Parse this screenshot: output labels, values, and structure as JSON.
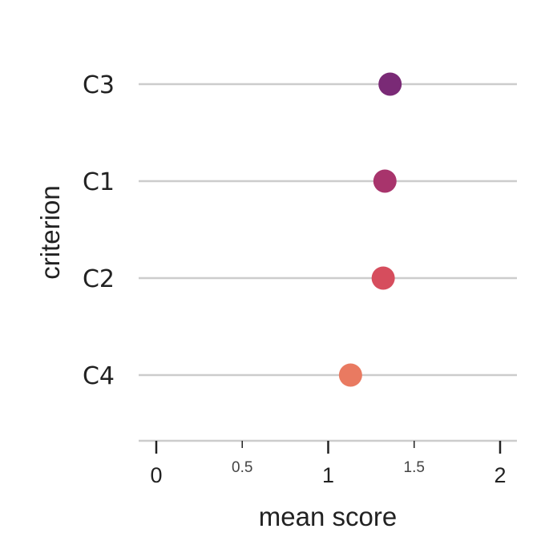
{
  "chart_data": {
    "type": "scatter",
    "xlabel": "mean score",
    "ylabel": "criterion",
    "xlim": [
      -0.1,
      2.1
    ],
    "x_ticks": [
      {
        "value": 0,
        "label": "0",
        "major": true
      },
      {
        "value": 0.5,
        "label": "0.5",
        "major": false
      },
      {
        "value": 1,
        "label": "1",
        "major": true
      },
      {
        "value": 1.5,
        "label": "1.5",
        "major": false
      },
      {
        "value": 2,
        "label": "2",
        "major": true
      }
    ],
    "categories": [
      "C3",
      "C1",
      "C2",
      "C4"
    ],
    "values": [
      1.36,
      1.33,
      1.32,
      1.13
    ],
    "colors": [
      "#7a2a76",
      "#a8346c",
      "#d64d5d",
      "#e97a61"
    ],
    "guide_color": "#cccccc",
    "grid": false
  }
}
